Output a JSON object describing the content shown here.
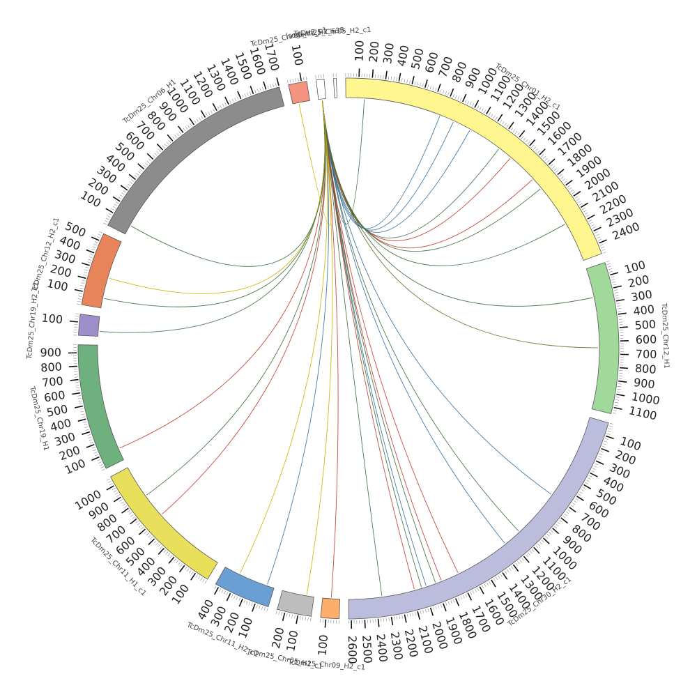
{
  "chart_data": {
    "type": "circos",
    "tick_step": 100,
    "segments": [
      {
        "name": "Isogenic_H2_635",
        "length": 60,
        "color": "#ffffff"
      },
      {
        "name": "TcDm25_Chr05_H2_c1",
        "length": 20,
        "color": "#ffffff"
      },
      {
        "name": "TcDm25_Chr01_H2_c1",
        "length": 2480,
        "color": "#fff68f"
      },
      {
        "name": "TcDm25_Chr12_H1",
        "length": 1150,
        "color": "#a1d99b"
      },
      {
        "name": "TcDm25_Chr30_H2_c1",
        "length": 2620,
        "color": "#bcbddc"
      },
      {
        "name": "TcDm25_Chr09_H2_c1",
        "length": 140,
        "color": "#fdae6b"
      },
      {
        "name": "TcDm25_Chr05_H1_c1",
        "length": 260,
        "color": "#bdbdbd"
      },
      {
        "name": "TcDm25_Chr11_H2_c1",
        "length": 430,
        "color": "#6a9fd4"
      },
      {
        "name": "TcDm25_Chr11_H1_c1",
        "length": 1070,
        "color": "#e8df5a"
      },
      {
        "name": "TcDm25_Chr19_H1",
        "length": 960,
        "color": "#6fb07f"
      },
      {
        "name": "TcDm25_Chr19_H2_c1",
        "length": 160,
        "color": "#9e8ec9"
      },
      {
        "name": "TcDm25_Chr12_H2_c1",
        "length": 560,
        "color": "#e8845a"
      },
      {
        "name": "TcDm25_Chr06_H1",
        "length": 1700,
        "color": "#8c8c8c"
      },
      {
        "name": "TcDm25_Chr06_H2_c1",
        "length": 140,
        "color": "#f4937f"
      }
    ],
    "links": [
      {
        "from": "Isogenic_H2_635",
        "from_pos": 30,
        "to": "TcDm25_Chr01_H2_c1",
        "to_pos": 150,
        "color": "#3a6b3a"
      },
      {
        "from": "Isogenic_H2_635",
        "from_pos": 30,
        "to": "TcDm25_Chr01_H2_c1",
        "to_pos": 780,
        "color": "#2f6fa0"
      },
      {
        "from": "Isogenic_H2_635",
        "from_pos": 30,
        "to": "TcDm25_Chr01_H2_c1",
        "to_pos": 900,
        "color": "#2f6fa0"
      },
      {
        "from": "Isogenic_H2_635",
        "from_pos": 30,
        "to": "TcDm25_Chr01_H2_c1",
        "to_pos": 1050,
        "color": "#2f6fa0"
      },
      {
        "from": "Isogenic_H2_635",
        "from_pos": 30,
        "to": "TcDm25_Chr01_H2_c1",
        "to_pos": 1330,
        "color": "#3a6b3a"
      },
      {
        "from": "Isogenic_H2_635",
        "from_pos": 30,
        "to": "TcDm25_Chr01_H2_c1",
        "to_pos": 1450,
        "color": "#c0392b"
      },
      {
        "from": "Isogenic_H2_635",
        "from_pos": 30,
        "to": "TcDm25_Chr01_H2_c1",
        "to_pos": 1700,
        "color": "#c0392b"
      },
      {
        "from": "Isogenic_H2_635",
        "from_pos": 30,
        "to": "TcDm25_Chr01_H2_c1",
        "to_pos": 1800,
        "color": "#3a6b3a"
      },
      {
        "from": "Isogenic_H2_635",
        "from_pos": 30,
        "to": "TcDm25_Chr01_H2_c1",
        "to_pos": 2150,
        "color": "#3a6b3a"
      },
      {
        "from": "Isogenic_H2_635",
        "from_pos": 30,
        "to": "TcDm25_Chr12_H1",
        "to_pos": 240,
        "color": "#3a6b3a"
      },
      {
        "from": "Isogenic_H2_635",
        "from_pos": 30,
        "to": "TcDm25_Chr12_H1",
        "to_pos": 650,
        "color": "#6b6b2a"
      },
      {
        "from": "Isogenic_H2_635",
        "from_pos": 30,
        "to": "TcDm25_Chr30_H2_c1",
        "to_pos": 700,
        "color": "#2f6fa0"
      },
      {
        "from": "Isogenic_H2_635",
        "from_pos": 30,
        "to": "TcDm25_Chr30_H2_c1",
        "to_pos": 1100,
        "color": "#3a6b3a"
      },
      {
        "from": "Isogenic_H2_635",
        "from_pos": 30,
        "to": "TcDm25_Chr30_H2_c1",
        "to_pos": 1250,
        "color": "#2f6fa0"
      },
      {
        "from": "Isogenic_H2_635",
        "from_pos": 30,
        "to": "TcDm25_Chr30_H2_c1",
        "to_pos": 1700,
        "color": "#c0392b"
      },
      {
        "from": "Isogenic_H2_635",
        "from_pos": 30,
        "to": "TcDm25_Chr30_H2_c1",
        "to_pos": 1850,
        "color": "#c0392b"
      },
      {
        "from": "Isogenic_H2_635",
        "from_pos": 30,
        "to": "TcDm25_Chr30_H2_c1",
        "to_pos": 1900,
        "color": "#3a6b3a"
      },
      {
        "from": "Isogenic_H2_635",
        "from_pos": 30,
        "to": "TcDm25_Chr30_H2_c1",
        "to_pos": 1980,
        "color": "#2f6fa0"
      },
      {
        "from": "Isogenic_H2_635",
        "from_pos": 30,
        "to": "TcDm25_Chr30_H2_c1",
        "to_pos": 2020,
        "color": "#3a6b3a"
      },
      {
        "from": "Isogenic_H2_635",
        "from_pos": 30,
        "to": "TcDm25_Chr30_H2_c1",
        "to_pos": 2080,
        "color": "#c0392b"
      },
      {
        "from": "Isogenic_H2_635",
        "from_pos": 30,
        "to": "TcDm25_Chr30_H2_c1",
        "to_pos": 2350,
        "color": "#3a6b3a"
      },
      {
        "from": "Isogenic_H2_635",
        "from_pos": 30,
        "to": "TcDm25_Chr09_H2_c1",
        "to_pos": 70,
        "color": "#c0392b"
      },
      {
        "from": "Isogenic_H2_635",
        "from_pos": 30,
        "to": "TcDm25_Chr05_H1_c1",
        "to_pos": 60,
        "color": "#c8b400"
      },
      {
        "from": "Isogenic_H2_635",
        "from_pos": 30,
        "to": "TcDm25_Chr11_H2_c1",
        "to_pos": 60,
        "color": "#2f6fa0"
      },
      {
        "from": "Isogenic_H2_635",
        "from_pos": 30,
        "to": "TcDm25_Chr11_H2_c1",
        "to_pos": 300,
        "color": "#c8b400"
      },
      {
        "from": "Isogenic_H2_635",
        "from_pos": 30,
        "to": "TcDm25_Chr11_H1_c1",
        "to_pos": 600,
        "color": "#c0392b"
      },
      {
        "from": "Isogenic_H2_635",
        "from_pos": 30,
        "to": "TcDm25_Chr11_H1_c1",
        "to_pos": 800,
        "color": "#3a6b3a"
      },
      {
        "from": "Isogenic_H2_635",
        "from_pos": 30,
        "to": "TcDm25_Chr19_H1",
        "to_pos": 100,
        "color": "#c0392b"
      },
      {
        "from": "Isogenic_H2_635",
        "from_pos": 30,
        "to": "TcDm25_Chr19_H2_c1",
        "to_pos": 40,
        "color": "#3a6b3a"
      },
      {
        "from": "Isogenic_H2_635",
        "from_pos": 30,
        "to": "TcDm25_Chr12_H2_c1",
        "to_pos": 80,
        "color": "#3a6b3a"
      },
      {
        "from": "Isogenic_H2_635",
        "from_pos": 30,
        "to": "TcDm25_Chr12_H2_c1",
        "to_pos": 250,
        "color": "#c8b400"
      },
      {
        "from": "Isogenic_H2_635",
        "from_pos": 30,
        "to": "TcDm25_Chr06_H1",
        "to_pos": 80,
        "color": "#3a6b3a"
      },
      {
        "from": "Isogenic_H2_635",
        "from_pos": 30,
        "to": "TcDm25_Chr06_H2_c1",
        "to_pos": 50,
        "color": "#c8b400"
      }
    ]
  }
}
